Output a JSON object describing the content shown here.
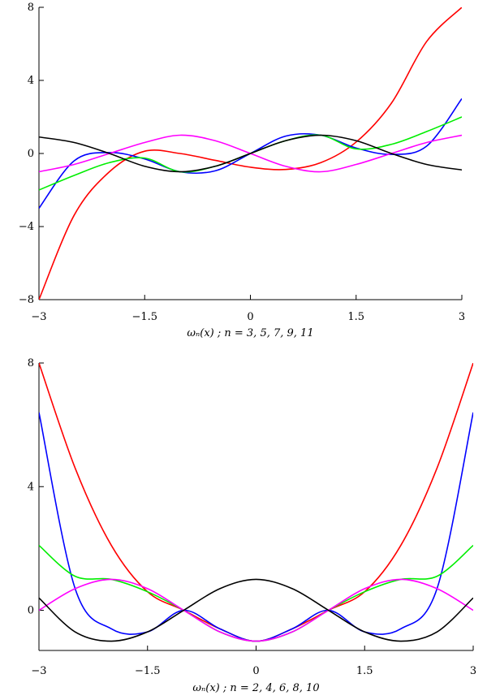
{
  "chart_data": [
    {
      "type": "line",
      "caption": "ωₙ(x) ;  n = 3, 5, 7, 9, 11",
      "xlim": [
        -3,
        3
      ],
      "ylim": [
        -8,
        8
      ],
      "xticks": [
        -3,
        -1.5,
        0,
        1.5,
        3
      ],
      "xtick_labels": [
        "−3",
        "−1.5",
        "0",
        "1.5",
        "3"
      ],
      "yticks": [
        8,
        4,
        0,
        -4,
        -8
      ],
      "ytick_labels": [
        "8",
        "4",
        "0",
        "−4",
        "−8"
      ],
      "x": [
        -3,
        -2.5,
        -2,
        -1.5,
        -1,
        -0.5,
        0,
        0.5,
        1,
        1.5,
        2,
        2.5,
        3
      ],
      "series": [
        {
          "color": "#ff0000",
          "values": [
            -8,
            -3.375,
            -1,
            0.125,
            0,
            -0.375,
            -0.75,
            -0.875,
            -0.5,
            0.625,
            2.75,
            6.125,
            8
          ]
        },
        {
          "color": "#0000ff",
          "values": [
            -3,
            -0.4,
            0.05,
            -0.3,
            -1,
            -0.95,
            0,
            0.95,
            1,
            0.3,
            -0.05,
            0.4,
            3
          ]
        },
        {
          "color": "#00ee00",
          "values": [
            -2,
            -1.2,
            -0.5,
            -0.25,
            -1,
            -0.7,
            0,
            0.7,
            1,
            0.25,
            0.5,
            1.2,
            2
          ]
        },
        {
          "color": "#ff00ff",
          "values": [
            -1,
            -0.6,
            0,
            0.6,
            1,
            0.7,
            0,
            -0.7,
            -1,
            -0.6,
            0,
            0.6,
            1
          ]
        },
        {
          "color": "#000000",
          "values": [
            0.9,
            0.6,
            0,
            -0.7,
            -1,
            -0.7,
            0,
            0.7,
            1,
            0.7,
            0,
            -0.6,
            -0.9
          ]
        }
      ]
    },
    {
      "type": "line",
      "caption": "ωₙ(x) ;  n = 2, 4, 6, 8, 10",
      "xlim": [
        -3,
        3
      ],
      "ylim": [
        -1.3,
        8
      ],
      "xticks": [
        -3,
        -1.5,
        0,
        1.5,
        3
      ],
      "xtick_labels": [
        "−3",
        "−1.5",
        "0",
        "1.5",
        "3"
      ],
      "yticks": [
        8,
        4,
        0
      ],
      "ytick_labels": [
        "8",
        "4",
        "0"
      ],
      "x": [
        -3,
        -2.5,
        -2,
        -1.5,
        -1,
        -0.5,
        0,
        0.5,
        1,
        1.5,
        2,
        2.5,
        3
      ],
      "series": [
        {
          "color": "#ff0000",
          "values": [
            8,
            4.6,
            2.1,
            0.6,
            0,
            -0.6,
            -1,
            -0.6,
            0,
            0.6,
            2.1,
            4.6,
            8
          ]
        },
        {
          "color": "#0000ff",
          "values": [
            6.4,
            0.7,
            -0.6,
            -0.7,
            0,
            -0.6,
            -1,
            -0.6,
            0,
            -0.7,
            -0.6,
            0.7,
            6.4
          ]
        },
        {
          "color": "#00ee00",
          "values": [
            2.1,
            1.1,
            1,
            0.6,
            0,
            -0.7,
            -1,
            -0.7,
            0,
            0.6,
            1,
            1.1,
            2.1
          ]
        },
        {
          "color": "#ff00ff",
          "values": [
            0,
            0.7,
            1,
            0.7,
            0,
            -0.7,
            -1,
            -0.7,
            0,
            0.7,
            1,
            0.7,
            0
          ]
        },
        {
          "color": "#000000",
          "values": [
            0.4,
            -0.7,
            -1,
            -0.7,
            0,
            0.7,
            1,
            0.7,
            0,
            -0.7,
            -1,
            -0.7,
            0.4
          ]
        }
      ]
    }
  ]
}
